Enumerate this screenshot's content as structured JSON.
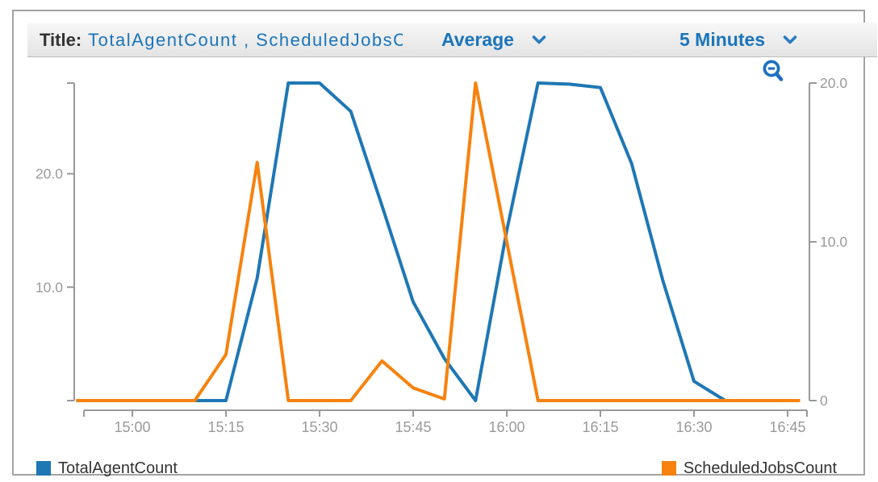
{
  "header": {
    "title_label": "Title:",
    "title_value": "TotalAgentCount , ScheduledJobsCount",
    "statistic": "Average",
    "period": "5 Minutes"
  },
  "icons": {
    "statistic_chevron": "chevron-down",
    "period_chevron": "chevron-down",
    "zoom_button": "zoom-out-magnifier-minus"
  },
  "colors": {
    "series_blue": "#1f77b4",
    "series_orange": "#f7820e",
    "axis": "#999999",
    "tick_text": "#9a9a9a",
    "header_link_blue": "#1b75bb",
    "title_text": "#333333",
    "legend_text": "#333333"
  },
  "chart_data": {
    "type": "line",
    "title": "TotalAgentCount , ScheduledJobsCount",
    "statistic": "Average",
    "period": "5 Minutes",
    "x_tick_labels": [
      "15:00",
      "15:15",
      "15:30",
      "15:45",
      "16:00",
      "16:15",
      "16:30",
      "16:45"
    ],
    "x_range": [
      "14:51",
      "16:48"
    ],
    "grid": false,
    "legend_position": "bottom",
    "left_axis": {
      "min": 0,
      "max": 28,
      "ticks": [
        {
          "label": "10.0",
          "value": 10
        },
        {
          "label": "20.0",
          "value": 20
        }
      ]
    },
    "right_axis": {
      "min": 0,
      "max": 20,
      "ticks": [
        {
          "label": "0",
          "value": 0
        },
        {
          "label": "10.0",
          "value": 10
        },
        {
          "label": "20.0",
          "value": 20
        }
      ]
    },
    "series": [
      {
        "name": "TotalAgentCount",
        "color": "#1f77b4",
        "axis": "left",
        "points": [
          [
            "14:51",
            0
          ],
          [
            "14:55",
            0
          ],
          [
            "15:00",
            0
          ],
          [
            "15:05",
            0
          ],
          [
            "15:10",
            0
          ],
          [
            "15:15",
            0
          ],
          [
            "15:20",
            10.8
          ],
          [
            "15:25",
            28
          ],
          [
            "15:30",
            28
          ],
          [
            "15:35",
            25.5
          ],
          [
            "15:40",
            17.2
          ],
          [
            "15:45",
            8.7
          ],
          [
            "15:50",
            3.7
          ],
          [
            "15:55",
            0
          ],
          [
            "16:00",
            15
          ],
          [
            "16:05",
            28
          ],
          [
            "16:10",
            27.9
          ],
          [
            "16:15",
            27.6
          ],
          [
            "16:20",
            20.9
          ],
          [
            "16:25",
            10.6
          ],
          [
            "16:30",
            1.7
          ],
          [
            "16:35",
            0
          ],
          [
            "16:40",
            0
          ],
          [
            "16:45",
            0
          ],
          [
            "16:47",
            0
          ]
        ]
      },
      {
        "name": "ScheduledJobsCount",
        "color": "#f7820e",
        "axis": "right",
        "points": [
          [
            "14:51",
            0
          ],
          [
            "14:55",
            0
          ],
          [
            "15:00",
            0
          ],
          [
            "15:05",
            0
          ],
          [
            "15:10",
            0
          ],
          [
            "15:15",
            2.9
          ],
          [
            "15:20",
            15
          ],
          [
            "15:25",
            0
          ],
          [
            "15:30",
            0
          ],
          [
            "15:35",
            0
          ],
          [
            "15:40",
            2.5
          ],
          [
            "15:45",
            0.8
          ],
          [
            "15:50",
            0.1
          ],
          [
            "15:55",
            20
          ],
          [
            "16:00",
            10
          ],
          [
            "16:05",
            0
          ],
          [
            "16:10",
            0
          ],
          [
            "16:15",
            0
          ],
          [
            "16:20",
            0
          ],
          [
            "16:25",
            0
          ],
          [
            "16:30",
            0
          ],
          [
            "16:35",
            0
          ],
          [
            "16:40",
            0
          ],
          [
            "16:45",
            0
          ],
          [
            "16:47",
            0
          ]
        ]
      }
    ],
    "legend": [
      {
        "label": "TotalAgentCount",
        "color": "#1f77b4"
      },
      {
        "label": "ScheduledJobsCount",
        "color": "#f7820e"
      }
    ]
  }
}
